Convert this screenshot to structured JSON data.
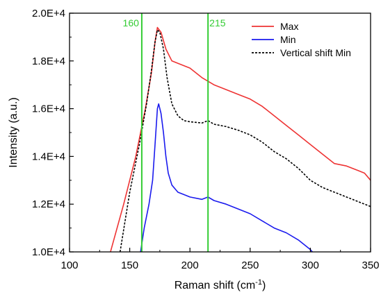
{
  "chart_data": {
    "type": "line",
    "title": "",
    "xlabel": "Raman shift (cm",
    "xlabel_sup": "-1",
    "xlabel_end": ")",
    "ylabel": "Intensity (a.u.)",
    "xlim": [
      100,
      350
    ],
    "ylim": [
      10000,
      20000
    ],
    "x_ticks": [
      100,
      150,
      200,
      250,
      300,
      350
    ],
    "x_tick_labels": [
      "100",
      "150",
      "200",
      "250",
      "300",
      "350"
    ],
    "y_ticks": [
      10000,
      12000,
      14000,
      16000,
      18000,
      20000
    ],
    "y_tick_labels": [
      "1.0E+4",
      "1.2E+4",
      "1.4E+4",
      "1.6E+4",
      "1.8E+4",
      "2.0E+4"
    ],
    "grid": false,
    "legend_position": "top-right",
    "vertical_lines": [
      {
        "x": 160,
        "label": "160",
        "color": "#33cc33"
      },
      {
        "x": 215,
        "label": "215",
        "color": "#33cc33"
      }
    ],
    "series": [
      {
        "name": "Max",
        "color": "#ee3333",
        "style": "solid",
        "points": [
          [
            134,
            10000
          ],
          [
            145,
            12000
          ],
          [
            155,
            14000
          ],
          [
            163,
            16000
          ],
          [
            168,
            17500
          ],
          [
            171,
            18800
          ],
          [
            173,
            19400
          ],
          [
            176,
            19200
          ],
          [
            180,
            18500
          ],
          [
            185,
            18000
          ],
          [
            190,
            17900
          ],
          [
            200,
            17700
          ],
          [
            210,
            17300
          ],
          [
            220,
            17000
          ],
          [
            230,
            16800
          ],
          [
            240,
            16600
          ],
          [
            250,
            16400
          ],
          [
            260,
            16100
          ],
          [
            270,
            15700
          ],
          [
            280,
            15300
          ],
          [
            290,
            14900
          ],
          [
            300,
            14500
          ],
          [
            310,
            14100
          ],
          [
            320,
            13700
          ],
          [
            330,
            13600
          ],
          [
            340,
            13400
          ],
          [
            345,
            13300
          ],
          [
            350,
            13000
          ]
        ]
      },
      {
        "name": "Min",
        "color": "#1a1aee",
        "style": "solid",
        "points": [
          [
            159,
            10000
          ],
          [
            162,
            11000
          ],
          [
            166,
            12000
          ],
          [
            169,
            13000
          ],
          [
            171,
            14500
          ],
          [
            173,
            16000
          ],
          [
            174,
            16200
          ],
          [
            176,
            15800
          ],
          [
            178,
            15000
          ],
          [
            180,
            14000
          ],
          [
            182,
            13300
          ],
          [
            185,
            12800
          ],
          [
            190,
            12500
          ],
          [
            195,
            12400
          ],
          [
            200,
            12300
          ],
          [
            210,
            12200
          ],
          [
            215,
            12300
          ],
          [
            220,
            12150
          ],
          [
            230,
            12000
          ],
          [
            240,
            11800
          ],
          [
            250,
            11600
          ],
          [
            260,
            11300
          ],
          [
            270,
            11000
          ],
          [
            280,
            10800
          ],
          [
            290,
            10500
          ],
          [
            300,
            10100
          ],
          [
            305,
            9800
          ]
        ]
      },
      {
        "name": "Vertical shift Min",
        "color": "#000000",
        "style": "dashed",
        "points": [
          [
            142,
            10000
          ],
          [
            150,
            12500
          ],
          [
            158,
            14500
          ],
          [
            164,
            16200
          ],
          [
            168,
            17600
          ],
          [
            171,
            18800
          ],
          [
            173,
            19300
          ],
          [
            175,
            19200
          ],
          [
            178,
            18500
          ],
          [
            181,
            17300
          ],
          [
            185,
            16200
          ],
          [
            190,
            15700
          ],
          [
            195,
            15500
          ],
          [
            200,
            15450
          ],
          [
            210,
            15400
          ],
          [
            215,
            15500
          ],
          [
            220,
            15350
          ],
          [
            230,
            15250
          ],
          [
            240,
            15100
          ],
          [
            250,
            14900
          ],
          [
            260,
            14600
          ],
          [
            270,
            14200
          ],
          [
            280,
            13900
          ],
          [
            290,
            13500
          ],
          [
            300,
            13000
          ],
          [
            310,
            12700
          ],
          [
            320,
            12500
          ],
          [
            330,
            12300
          ],
          [
            340,
            12100
          ],
          [
            350,
            11900
          ]
        ]
      }
    ]
  }
}
